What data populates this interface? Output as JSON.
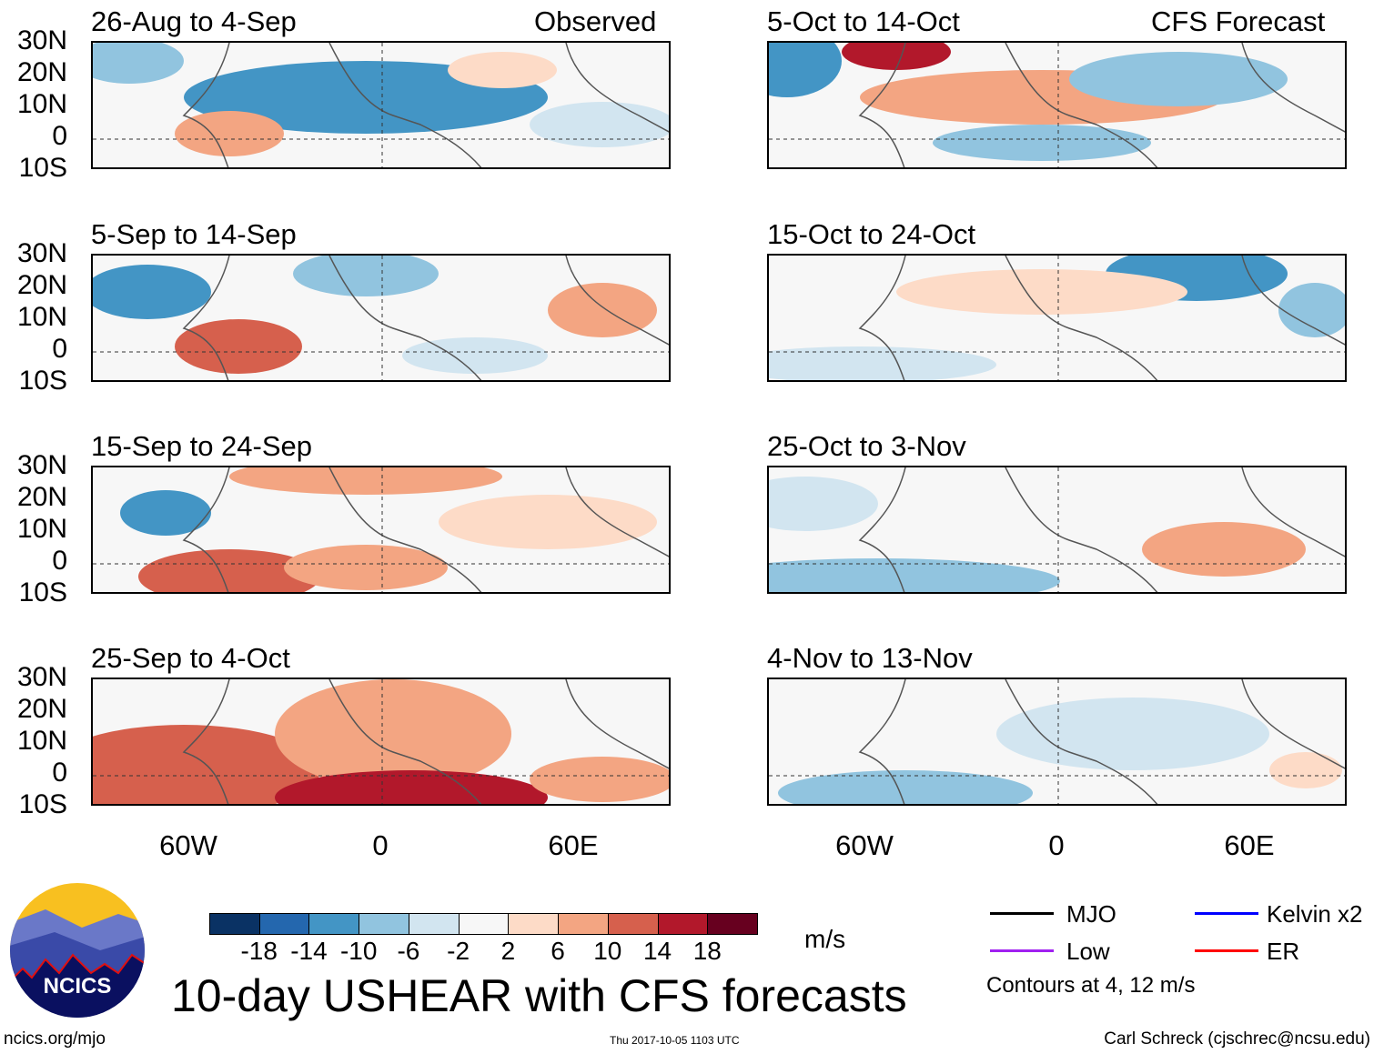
{
  "chart_data": {
    "type": "heatmap",
    "title": "10-day USHEAR with CFS forecasts",
    "units": "m/s",
    "lat_ticks": [
      "30N",
      "20N",
      "10N",
      "0",
      "10S"
    ],
    "lon_ticks": [
      "60W",
      "0",
      "60E"
    ],
    "lat_range": [
      -10,
      30
    ],
    "columns": [
      {
        "header": "Observed",
        "panels": [
          "26-Aug to 4-Sep",
          "5-Sep to 14-Sep",
          "15-Sep to 24-Sep",
          "25-Sep to 4-Oct"
        ]
      },
      {
        "header": "CFS Forecast",
        "panels": [
          "5-Oct to 14-Oct",
          "15-Oct to 24-Oct",
          "25-Oct to 3-Nov",
          "4-Nov to 13-Nov"
        ]
      }
    ],
    "colorbar": {
      "labels": [
        "-18",
        "-14",
        "-10",
        "-6",
        "-2",
        "2",
        "6",
        "10",
        "14",
        "18"
      ],
      "colors": [
        "#0a3264",
        "#2467ae",
        "#4395c5",
        "#91c4df",
        "#d2e5f0",
        "#f7f7f7",
        "#fddbc7",
        "#f3a582",
        "#d6604d",
        "#b2182b",
        "#67001f"
      ]
    },
    "legend": [
      {
        "label": "MJO",
        "color": "#000000"
      },
      {
        "label": "Kelvin x2",
        "color": "#0000ff"
      },
      {
        "label": "Low",
        "color": "#a020f0"
      },
      {
        "label": "ER",
        "color": "#ff0000"
      }
    ],
    "contour_note": "Contours at 4, 12 m/s"
  },
  "footer": {
    "url": "ncics.org/mjo",
    "timestamp": "Thu 2017-10-05 1103 UTC",
    "author": "Carl Schreck (cjschrec@ncsu.edu)",
    "logo_text": "NCICS"
  }
}
